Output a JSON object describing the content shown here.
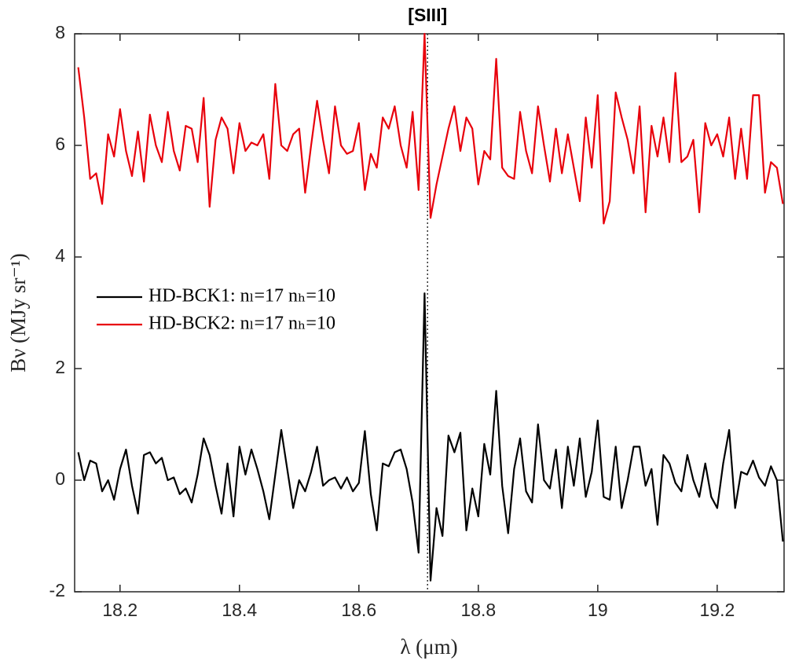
{
  "chart_data": {
    "type": "line",
    "xlabel": "λ (μm)",
    "ylabel": "Bν (MJy sr⁻¹)",
    "annotation": {
      "text": "[SIII]",
      "x": 18.715
    },
    "xlim": [
      18.124,
      19.312
    ],
    "ylim": [
      -2,
      8
    ],
    "xticks": [
      18.2,
      18.4,
      18.6,
      18.8,
      19,
      19.2
    ],
    "yticks": [
      -2,
      0,
      2,
      4,
      6,
      8
    ],
    "legend": "left",
    "x": [
      18.13,
      18.14,
      18.15,
      18.16,
      18.17,
      18.18,
      18.19,
      18.2,
      18.21,
      18.22,
      18.23,
      18.24,
      18.25,
      18.26,
      18.27,
      18.28,
      18.29,
      18.3,
      18.31,
      18.32,
      18.33,
      18.34,
      18.35,
      18.36,
      18.37,
      18.38,
      18.39,
      18.4,
      18.41,
      18.42,
      18.43,
      18.44,
      18.45,
      18.46,
      18.47,
      18.48,
      18.49,
      18.5,
      18.51,
      18.52,
      18.53,
      18.54,
      18.55,
      18.56,
      18.57,
      18.58,
      18.59,
      18.6,
      18.61,
      18.62,
      18.63,
      18.64,
      18.65,
      18.66,
      18.67,
      18.68,
      18.69,
      18.7,
      18.71,
      18.72,
      18.73,
      18.74,
      18.75,
      18.76,
      18.77,
      18.78,
      18.79,
      18.8,
      18.81,
      18.82,
      18.83,
      18.84,
      18.85,
      18.86,
      18.87,
      18.88,
      18.89,
      18.9,
      18.91,
      18.92,
      18.93,
      18.94,
      18.95,
      18.96,
      18.97,
      18.98,
      18.99,
      19.0,
      19.01,
      19.02,
      19.03,
      19.04,
      19.05,
      19.06,
      19.07,
      19.08,
      19.09,
      19.1,
      19.11,
      19.12,
      19.13,
      19.14,
      19.15,
      19.16,
      19.17,
      19.18,
      19.19,
      19.2,
      19.21,
      19.22,
      19.23,
      19.24,
      19.25,
      19.26,
      19.27,
      19.28,
      19.29,
      19.3,
      19.31
    ],
    "series": [
      {
        "name": "HD-BCK1: nₗ=17 nₕ=10",
        "color": "#000000",
        "values": [
          0.5,
          0.0,
          0.35,
          0.3,
          -0.2,
          0.0,
          -0.35,
          0.2,
          0.55,
          -0.1,
          -0.6,
          0.45,
          0.5,
          0.3,
          0.4,
          0.0,
          0.05,
          -0.25,
          -0.15,
          -0.4,
          0.1,
          0.75,
          0.45,
          -0.1,
          -0.6,
          0.3,
          -0.65,
          0.6,
          0.1,
          0.55,
          0.2,
          -0.2,
          -0.7,
          0.1,
          0.9,
          0.2,
          -0.5,
          0.0,
          -0.2,
          0.15,
          0.6,
          -0.1,
          0.0,
          0.05,
          -0.15,
          0.05,
          -0.2,
          -0.05,
          0.88,
          -0.25,
          -0.9,
          0.3,
          0.25,
          0.5,
          0.55,
          0.2,
          -0.4,
          -1.3,
          3.35,
          -1.8,
          -0.5,
          -1.0,
          0.8,
          0.5,
          0.85,
          -0.9,
          -0.15,
          -0.65,
          0.65,
          0.1,
          1.6,
          -0.1,
          -0.95,
          0.2,
          0.75,
          -0.2,
          -0.4,
          1.0,
          0.0,
          -0.15,
          0.55,
          -0.5,
          0.6,
          -0.1,
          0.75,
          -0.3,
          0.15,
          1.07,
          -0.3,
          -0.35,
          0.6,
          -0.5,
          0.0,
          0.6,
          0.6,
          -0.1,
          0.2,
          -0.8,
          0.45,
          0.3,
          -0.05,
          -0.2,
          0.45,
          0.0,
          -0.3,
          0.3,
          -0.3,
          -0.5,
          0.3,
          0.9,
          -0.5,
          0.15,
          0.1,
          0.35,
          0.05,
          -0.1,
          0.25,
          0.0,
          -1.1
        ]
      },
      {
        "name": "HD-BCK2: nₗ=17 nₕ=10",
        "color": "#e8000b",
        "values": [
          7.4,
          6.5,
          5.4,
          5.5,
          4.95,
          6.2,
          5.8,
          6.65,
          5.9,
          5.45,
          6.25,
          5.35,
          6.55,
          6.0,
          5.7,
          6.6,
          5.9,
          5.55,
          6.35,
          6.3,
          5.7,
          6.85,
          4.9,
          6.1,
          6.5,
          6.3,
          5.5,
          6.4,
          5.9,
          6.05,
          6.0,
          6.2,
          5.4,
          7.1,
          6.0,
          5.9,
          6.2,
          6.3,
          5.15,
          6.0,
          6.8,
          6.1,
          5.5,
          6.7,
          6.0,
          5.85,
          5.9,
          6.4,
          5.2,
          5.85,
          5.6,
          6.5,
          6.3,
          6.7,
          6.0,
          5.6,
          6.6,
          5.2,
          8.0,
          4.7,
          5.3,
          5.8,
          6.3,
          6.7,
          5.9,
          6.5,
          6.3,
          5.3,
          5.9,
          5.75,
          7.55,
          5.6,
          5.45,
          5.4,
          6.6,
          5.9,
          5.5,
          6.7,
          6.0,
          5.35,
          6.3,
          5.5,
          6.2,
          5.6,
          5.0,
          6.5,
          5.6,
          6.9,
          4.6,
          5.0,
          6.95,
          6.5,
          6.1,
          5.5,
          6.7,
          4.8,
          6.35,
          5.8,
          6.5,
          5.7,
          7.3,
          5.7,
          5.8,
          6.1,
          4.8,
          6.4,
          6.0,
          6.2,
          5.8,
          6.5,
          5.4,
          6.3,
          5.4,
          6.9,
          6.9,
          5.15,
          5.7,
          5.6,
          4.95
        ]
      }
    ]
  }
}
